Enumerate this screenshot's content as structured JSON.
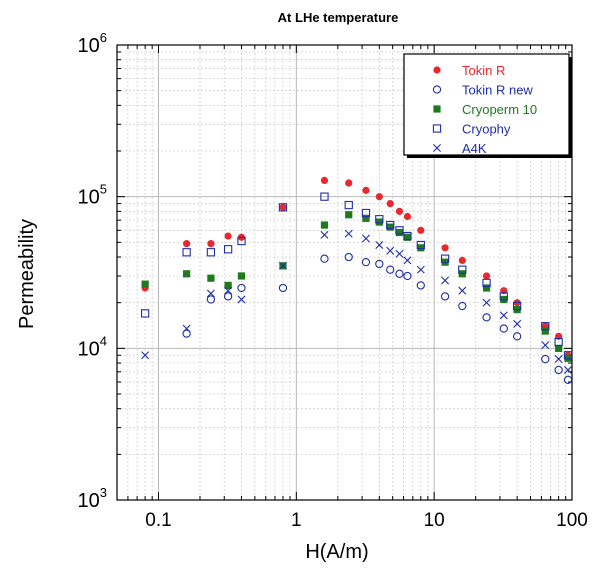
{
  "chart_data": {
    "type": "scatter",
    "title": "At LHe temperature",
    "xlabel": "H(A/m)",
    "ylabel": "Permeability",
    "x_scale": "log",
    "y_scale": "log",
    "xlim": [
      0.05,
      100
    ],
    "ylim": [
      1000,
      1000000
    ],
    "grid": true,
    "legend_position": "top-right",
    "x_ticks": [
      {
        "value": 0.1,
        "label": "0.1"
      },
      {
        "value": 1,
        "label": "1"
      },
      {
        "value": 10,
        "label": "10"
      },
      {
        "value": 100,
        "label": "100"
      }
    ],
    "y_ticks": [
      {
        "value": 1000,
        "base": "10",
        "exp": "3"
      },
      {
        "value": 10000,
        "base": "10",
        "exp": "4"
      },
      {
        "value": 100000,
        "base": "10",
        "exp": "5"
      },
      {
        "value": 1000000,
        "base": "10",
        "exp": "6"
      }
    ],
    "series": [
      {
        "name": "Tokin R",
        "marker": "filled-circle",
        "color": "#e8282e",
        "points": [
          [
            0.08,
            25000
          ],
          [
            0.16,
            49000
          ],
          [
            0.24,
            49000
          ],
          [
            0.32,
            55000
          ],
          [
            0.4,
            54000
          ],
          [
            0.8,
            85000
          ],
          [
            1.6,
            128000
          ],
          [
            2.4,
            123000
          ],
          [
            3.2,
            110000
          ],
          [
            4,
            100000
          ],
          [
            4.8,
            90000
          ],
          [
            5.6,
            80000
          ],
          [
            6.4,
            74000
          ],
          [
            8,
            60000
          ],
          [
            12,
            46000
          ],
          [
            16,
            38000
          ],
          [
            24,
            30000
          ],
          [
            32,
            24000
          ],
          [
            40,
            20000
          ],
          [
            64,
            14000
          ],
          [
            80,
            12000
          ],
          [
            100,
            9000
          ]
        ]
      },
      {
        "name": "Tokin R new",
        "marker": "open-circle",
        "color": "#1f2ea8",
        "points": [
          [
            0.16,
            12500
          ],
          [
            0.24,
            21000
          ],
          [
            0.32,
            22000
          ],
          [
            0.4,
            25000
          ],
          [
            0.8,
            25000
          ],
          [
            1.6,
            39000
          ],
          [
            2.4,
            40000
          ],
          [
            3.2,
            37000
          ],
          [
            4,
            36000
          ],
          [
            4.8,
            33000
          ],
          [
            5.6,
            31000
          ],
          [
            6.4,
            30000
          ],
          [
            8,
            26000
          ],
          [
            12,
            22000
          ],
          [
            16,
            19000
          ],
          [
            24,
            16000
          ],
          [
            32,
            13500
          ],
          [
            40,
            12000
          ],
          [
            64,
            8500
          ],
          [
            80,
            7200
          ],
          [
            100,
            6200
          ]
        ]
      },
      {
        "name": "Cryoperm 10",
        "marker": "filled-square",
        "color": "#1d7a1d",
        "points": [
          [
            0.08,
            26500
          ],
          [
            0.16,
            31000
          ],
          [
            0.24,
            29000
          ],
          [
            0.32,
            26000
          ],
          [
            0.4,
            30000
          ],
          [
            0.8,
            35000
          ],
          [
            1.6,
            65000
          ],
          [
            2.4,
            76000
          ],
          [
            3.2,
            72000
          ],
          [
            4,
            68000
          ],
          [
            4.8,
            63000
          ],
          [
            5.6,
            58000
          ],
          [
            6.4,
            54000
          ],
          [
            8,
            46000
          ],
          [
            12,
            37000
          ],
          [
            16,
            31000
          ],
          [
            24,
            25000
          ],
          [
            32,
            21000
          ],
          [
            40,
            18000
          ],
          [
            64,
            13000
          ],
          [
            80,
            10000
          ],
          [
            100,
            8600
          ]
        ]
      },
      {
        "name": "Cryophy",
        "marker": "open-square",
        "color": "#1f2ea8",
        "points": [
          [
            0.08,
            17000
          ],
          [
            0.16,
            43000
          ],
          [
            0.24,
            43000
          ],
          [
            0.32,
            45000
          ],
          [
            0.4,
            51000
          ],
          [
            0.8,
            85000
          ],
          [
            1.6,
            100000
          ],
          [
            2.4,
            88000
          ],
          [
            3.2,
            78000
          ],
          [
            4,
            71000
          ],
          [
            4.8,
            65000
          ],
          [
            5.6,
            60000
          ],
          [
            6.4,
            55000
          ],
          [
            8,
            48000
          ],
          [
            12,
            39000
          ],
          [
            16,
            33000
          ],
          [
            24,
            27000
          ],
          [
            32,
            22000
          ],
          [
            40,
            19000
          ],
          [
            64,
            14000
          ],
          [
            80,
            11000
          ],
          [
            100,
            9000
          ]
        ]
      },
      {
        "name": "A4K",
        "marker": "cross",
        "color": "#1f2ea8",
        "points": [
          [
            0.08,
            9000
          ],
          [
            0.16,
            13500
          ],
          [
            0.24,
            23000
          ],
          [
            0.32,
            24000
          ],
          [
            0.4,
            21000
          ],
          [
            0.8,
            35000
          ],
          [
            1.6,
            56000
          ],
          [
            2.4,
            57000
          ],
          [
            3.2,
            53000
          ],
          [
            4,
            48000
          ],
          [
            4.8,
            44000
          ],
          [
            5.6,
            42000
          ],
          [
            6.4,
            38000
          ],
          [
            8,
            33000
          ],
          [
            12,
            28000
          ],
          [
            16,
            24000
          ],
          [
            24,
            20000
          ],
          [
            32,
            16500
          ],
          [
            40,
            14500
          ],
          [
            64,
            10500
          ],
          [
            80,
            8500
          ],
          [
            100,
            7200
          ]
        ]
      }
    ]
  }
}
